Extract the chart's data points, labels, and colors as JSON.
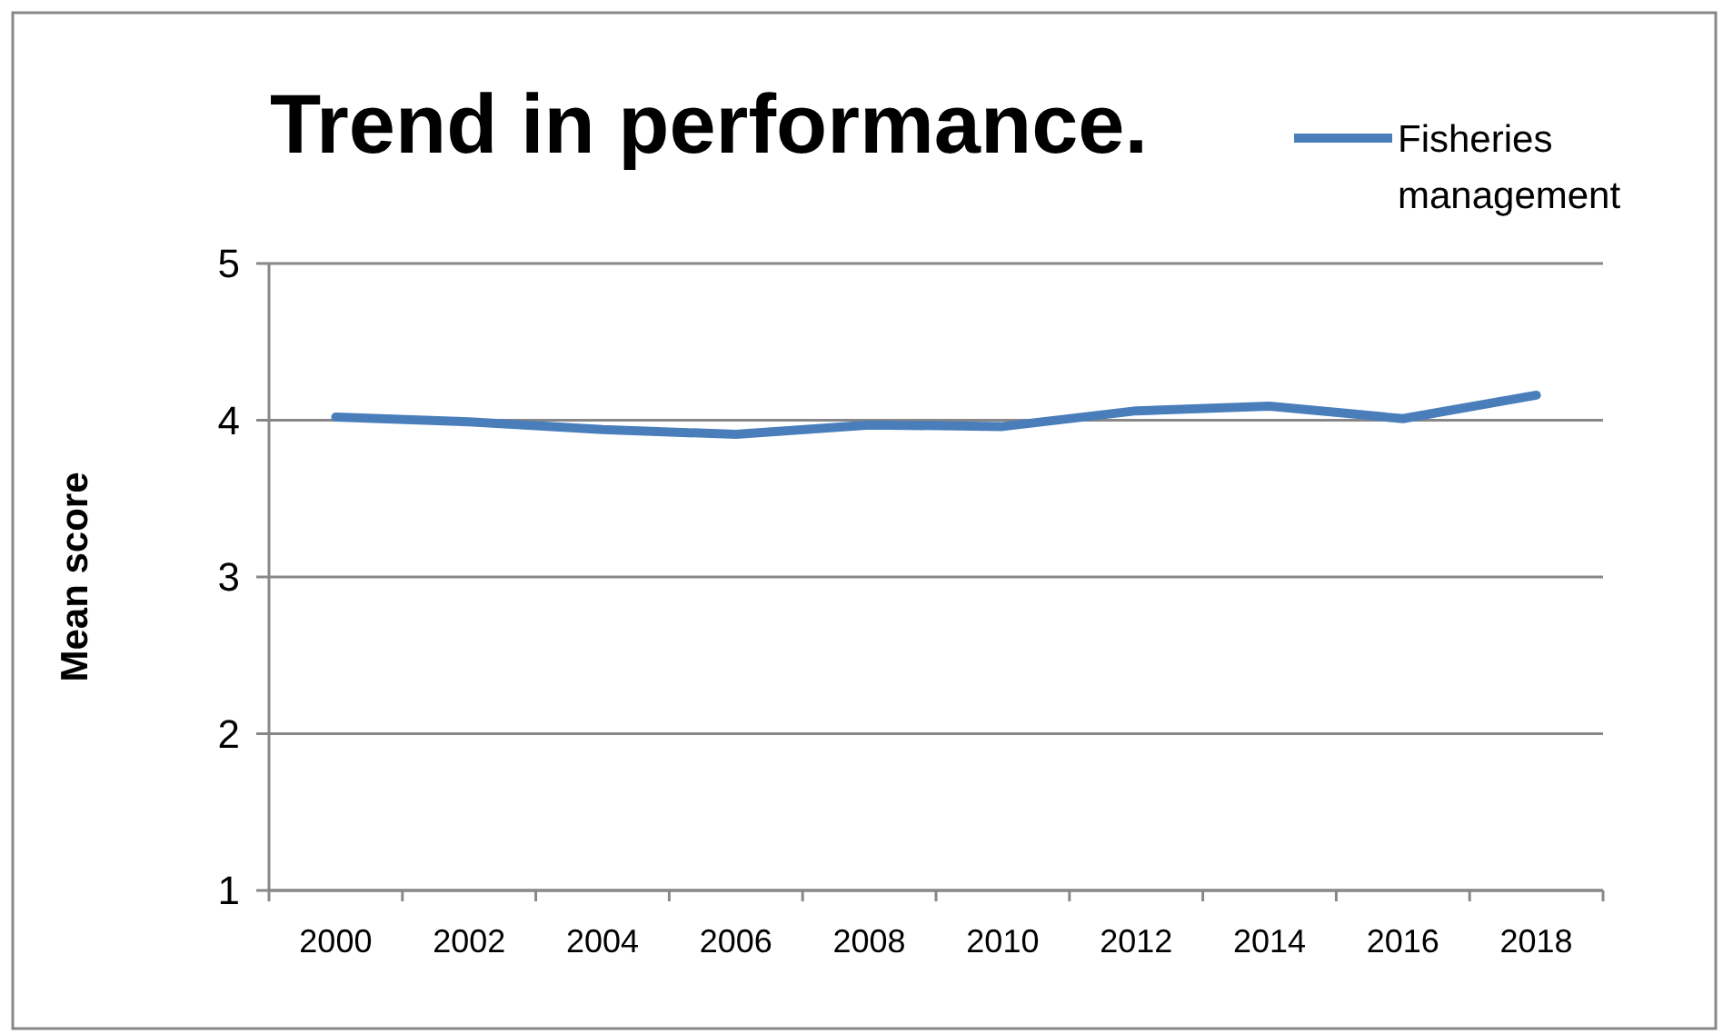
{
  "chart_data": {
    "type": "line",
    "title": "Trend in performance.",
    "ylabel": "Mean score",
    "categories": [
      "2000",
      "2002",
      "2004",
      "2006",
      "2008",
      "2010",
      "2012",
      "2014",
      "2016",
      "2018"
    ],
    "series": [
      {
        "name": "Fisheries management",
        "color": "#4a7ebb",
        "values": [
          4.02,
          3.99,
          3.94,
          3.91,
          3.97,
          3.96,
          4.06,
          4.09,
          4.01,
          4.16
        ]
      }
    ],
    "ylim": [
      1,
      5
    ],
    "yticks": [
      1,
      2,
      3,
      4,
      5
    ],
    "grid": "y",
    "legend": "top right",
    "line_style": "solid"
  }
}
